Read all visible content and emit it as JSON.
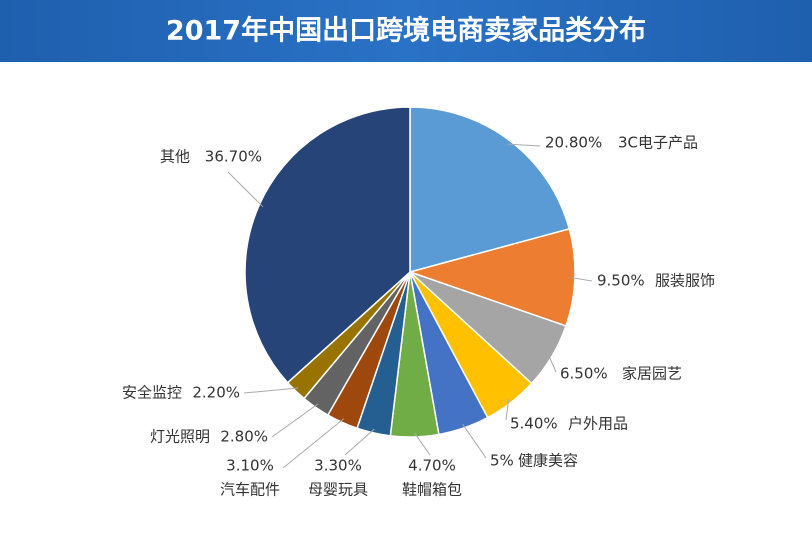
{
  "chart_data": {
    "type": "pie",
    "title": "2017年中国出口跨境电商卖家品类分布",
    "categories": [
      "3C电子产品",
      "服装服饰",
      "家居园艺",
      "户外用品",
      "健康美容",
      "鞋帽箱包",
      "母婴玩具",
      "汽车配件",
      "灯光照明",
      "安全监控",
      "其他"
    ],
    "values": [
      20.8,
      9.5,
      6.5,
      5.4,
      5,
      4.7,
      3.3,
      3.1,
      2.8,
      2.2,
      36.7
    ],
    "value_labels": [
      "20.80%",
      "9.50%",
      "6.50%",
      "5.40%",
      "5%",
      "4.70%",
      "3.30%",
      "3.10%",
      "2.80%",
      "2.20%",
      "36.70%"
    ],
    "colors": [
      "#5b9bd5",
      "#ed7d31",
      "#a5a5a5",
      "#ffc000",
      "#4472c4",
      "#70ad47",
      "#255e91",
      "#9e480e",
      "#636363",
      "#997300",
      "#264478"
    ]
  }
}
